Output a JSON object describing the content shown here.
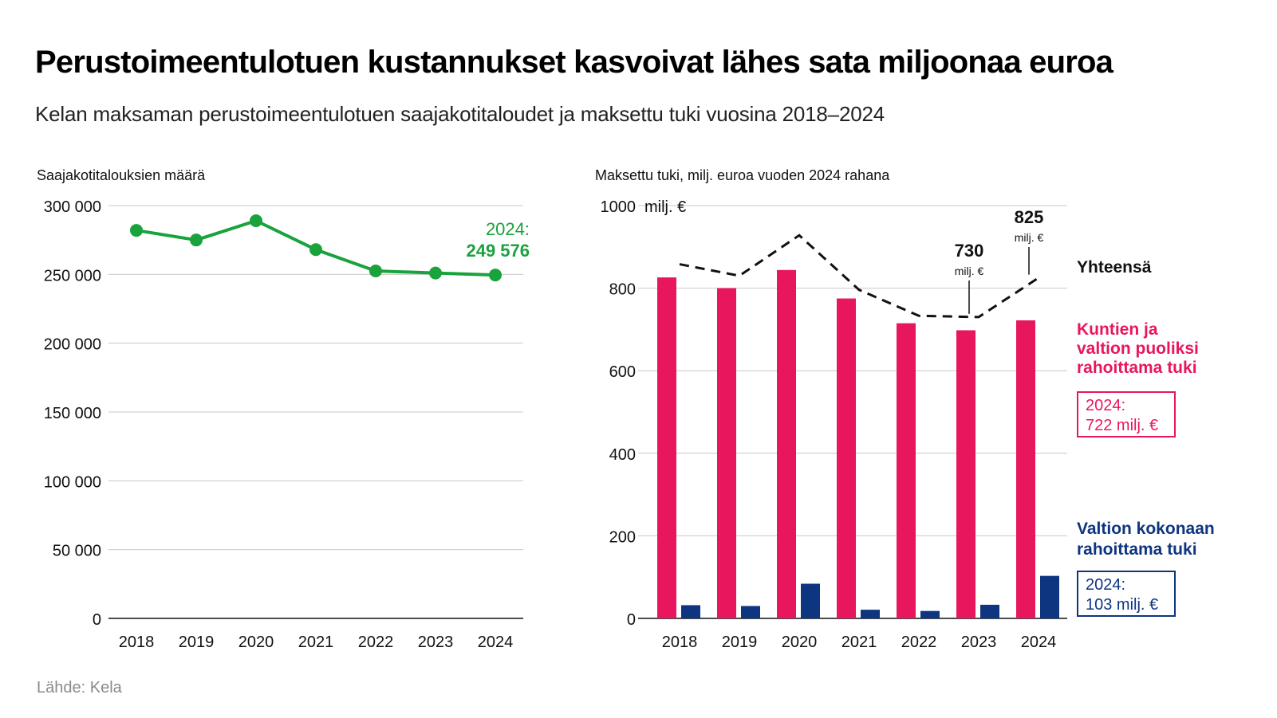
{
  "title": "Perustoimeentulotuen kustannukset kasvoivat lähes sata miljoonaa euroa",
  "subtitle": "Kelan maksaman perustoimeentulotuen saajakotitaloudet ja maksettu tuki vuosina 2018–2024",
  "source": "Lähde: Kela",
  "colors": {
    "green": "#1aa23c",
    "pink": "#e8175d",
    "navy": "#0e3580",
    "grid": "#c8c8c8",
    "dash": "#111111"
  },
  "chart_data": [
    {
      "type": "line",
      "title": "Saajakotitalouksien määrä",
      "categories": [
        "2018",
        "2019",
        "2020",
        "2021",
        "2022",
        "2023",
        "2024"
      ],
      "values": [
        282000,
        275000,
        289000,
        268000,
        252500,
        251000,
        249576
      ],
      "ylim": [
        0,
        300000
      ],
      "yticks": [
        0,
        50000,
        100000,
        150000,
        200000,
        250000,
        300000
      ],
      "ytick_labels": [
        "0",
        "50 000",
        "100 000",
        "150 000",
        "200 000",
        "250 000",
        "300 000"
      ],
      "annotation": {
        "label": "2024:",
        "value": "249 576"
      }
    },
    {
      "type": "bar",
      "title": "Maksettu tuki, milj. euroa vuoden 2024 rahana",
      "categories": [
        "2018",
        "2019",
        "2020",
        "2021",
        "2022",
        "2023",
        "2024"
      ],
      "ylim": [
        0,
        1000
      ],
      "yticks": [
        0,
        200,
        400,
        600,
        800,
        1000
      ],
      "ytick_labels": [
        "0",
        "200",
        "400",
        "600",
        "800",
        "1000"
      ],
      "yunit": "milj. €",
      "series": [
        {
          "name": "Kuntien ja valtion puoliksi rahoittama tuki",
          "legend_lines": [
            "Kuntien ja",
            "valtion puoliksi",
            "rahoittama tuki"
          ],
          "values": [
            826,
            800,
            844,
            775,
            715,
            698,
            722
          ],
          "box": [
            "2024:",
            "722 milj. €"
          ]
        },
        {
          "name": "Valtion kokonaan rahoittama tuki",
          "legend_lines": [
            "Valtion kokonaan",
            "rahoittama tuki"
          ],
          "values": [
            32,
            30,
            84,
            21,
            18,
            33,
            103
          ],
          "box": [
            "2024:",
            "103 milj. €"
          ]
        },
        {
          "name": "Yhteensä",
          "type": "line",
          "values": [
            858,
            830,
            928,
            796,
            733,
            730,
            825
          ]
        }
      ],
      "annotations": [
        {
          "category": "2023",
          "value": "730",
          "unit": "milj. €"
        },
        {
          "category": "2024",
          "value": "825",
          "unit": "milj. €"
        }
      ]
    }
  ]
}
